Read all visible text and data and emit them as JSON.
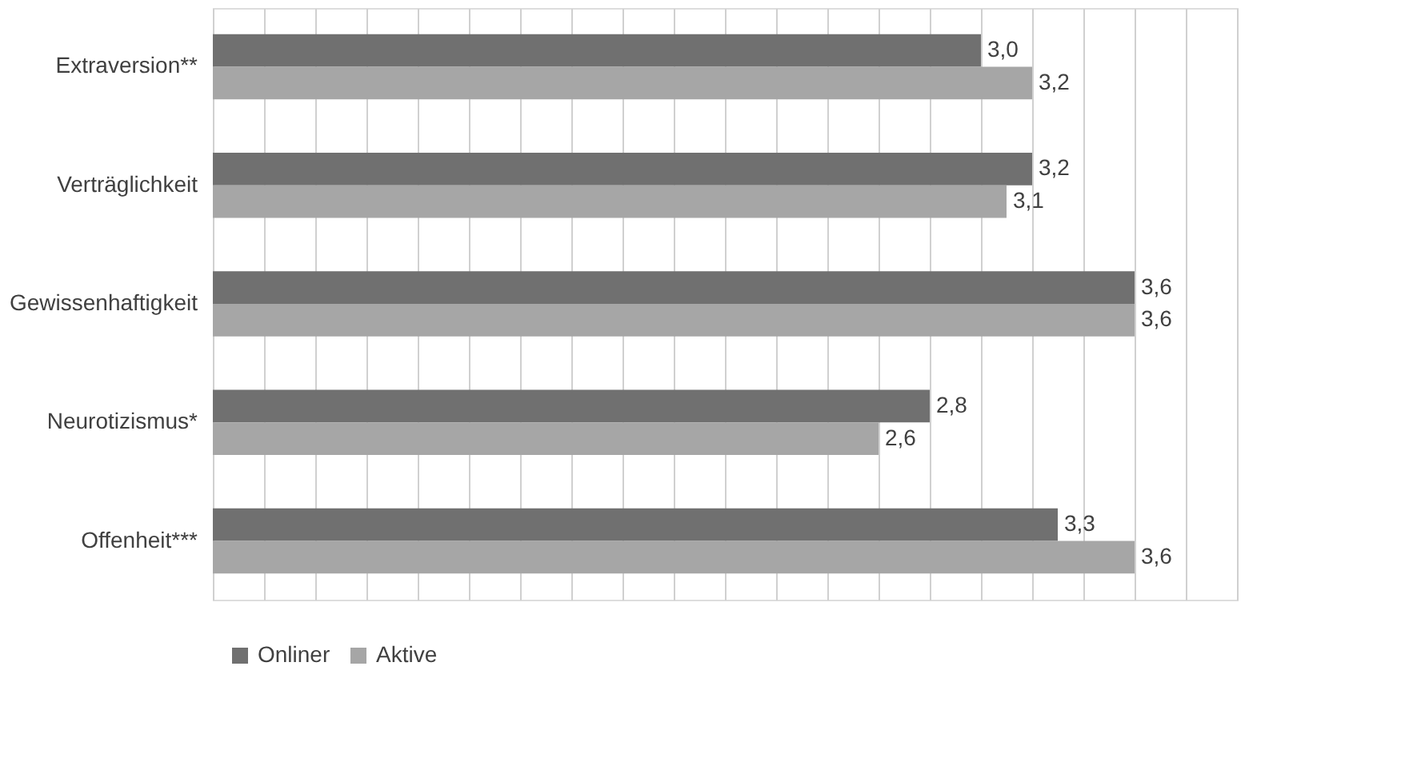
{
  "chart_data": {
    "type": "bar",
    "orientation": "horizontal",
    "categories": [
      "Extraversion**",
      "Verträglichkeit",
      "Gewissenhaftigkeit",
      "Neurotizismus*",
      "Offenheit***"
    ],
    "series": [
      {
        "name": "Onliner",
        "color": "#707070",
        "values": [
          3.0,
          3.2,
          3.6,
          2.8,
          3.3
        ],
        "value_labels": [
          "3,0",
          "3,2",
          "3,6",
          "2,8",
          "3,3"
        ]
      },
      {
        "name": "Aktive",
        "color": "#a6a6a6",
        "values": [
          3.2,
          3.1,
          3.6,
          2.6,
          3.6
        ],
        "value_labels": [
          "3,2",
          "3,1",
          "3,6",
          "2,6",
          "3,6"
        ]
      }
    ],
    "tick_labels": "y",
    "grid": "x",
    "legend": "bottom"
  }
}
